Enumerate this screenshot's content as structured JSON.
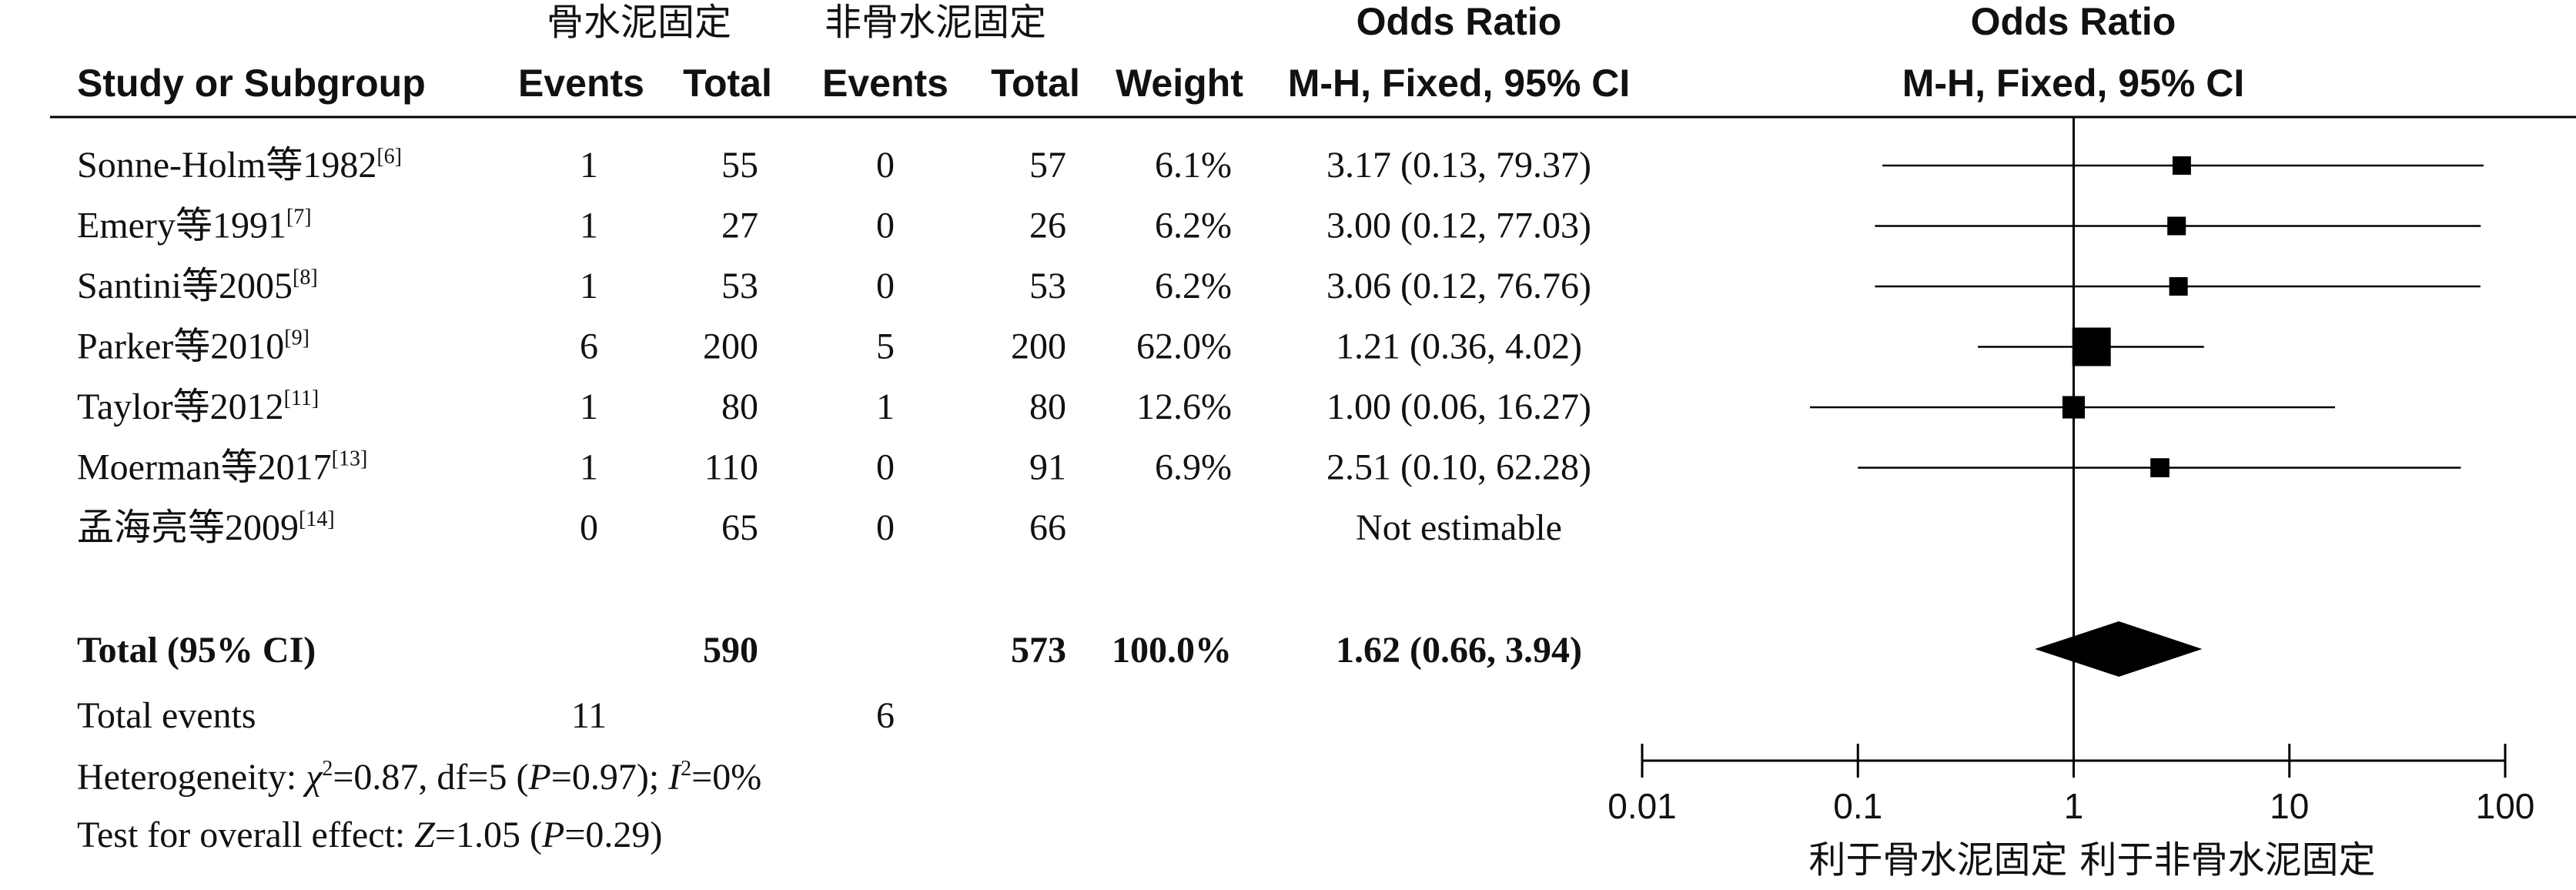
{
  "header": {
    "group1": "骨水泥固定",
    "group2": "非骨水泥固定",
    "or_title": "Odds Ratio",
    "or_method": "M-H, Fixed, 95% CI",
    "plot_title": "Odds Ratio",
    "plot_method": "M-H, Fixed, 95% CI",
    "study": "Study or Subgroup",
    "events1": "Events",
    "total1": "Total",
    "events2": "Events",
    "total2": "Total",
    "weight": "Weight"
  },
  "studies": [
    {
      "name": "Sonne-Holm等1982",
      "ref": "[6]",
      "e1": "1",
      "n1": "55",
      "e2": "0",
      "n2": "57",
      "weight": "6.1%",
      "or_text": "3.17 (0.13, 79.37)"
    },
    {
      "name": "Emery等1991",
      "ref": "[7]",
      "e1": "1",
      "n1": "27",
      "e2": "0",
      "n2": "26",
      "weight": "6.2%",
      "or_text": "3.00 (0.12, 77.03)"
    },
    {
      "name": "Santini等2005",
      "ref": "[8]",
      "e1": "1",
      "n1": "53",
      "e2": "0",
      "n2": "53",
      "weight": "6.2%",
      "or_text": "3.06 (0.12, 76.76)"
    },
    {
      "name": "Parker等2010",
      "ref": "[9]",
      "e1": "6",
      "n1": "200",
      "e2": "5",
      "n2": "200",
      "weight": "62.0%",
      "or_text": "1.21 (0.36, 4.02)"
    },
    {
      "name": "Taylor等2012",
      "ref": "[11]",
      "e1": "1",
      "n1": "80",
      "e2": "1",
      "n2": "80",
      "weight": "12.6%",
      "or_text": "1.00 (0.06, 16.27)"
    },
    {
      "name": "Moerman等2017",
      "ref": "[13]",
      "e1": "1",
      "n1": "110",
      "e2": "0",
      "n2": "91",
      "weight": "6.9%",
      "or_text": "2.51 (0.10, 62.28)"
    },
    {
      "name": "孟海亮等2009",
      "ref": "[14]",
      "e1": "0",
      "n1": "65",
      "e2": "0",
      "n2": "66",
      "weight": "",
      "or_text": "Not estimable"
    }
  ],
  "total": {
    "label": "Total (95% CI)",
    "n1": "590",
    "n2": "573",
    "weight": "100.0%",
    "or_text": "1.62 (0.66, 3.94)"
  },
  "total_events": {
    "label": "Total events",
    "e1": "11",
    "e2": "6"
  },
  "heterogeneity": {
    "prefix": "Heterogeneity: ",
    "chi": "χ",
    "chi_val": "=0.87, df=5 (",
    "p": "P",
    "p_val": "=0.97); ",
    "i": "I",
    "i_val": "=0%"
  },
  "overall": {
    "prefix": "Test for overall effect: ",
    "z": "Z",
    "z_val": "=1.05 (",
    "p": "P",
    "p_val": "=0.29)"
  },
  "chart_data": {
    "type": "forest",
    "scale": "log",
    "xlim": [
      0.01,
      100
    ],
    "ticks": [
      "0.01",
      "0.1",
      "1",
      "10",
      "100"
    ],
    "tick_values": [
      0.01,
      0.1,
      1,
      10,
      100
    ],
    "favours_left": "利于骨水泥固定",
    "favours_right": "利于非骨水泥固定",
    "points": [
      {
        "study": "Sonne-Holm等1982",
        "or": 3.17,
        "lo": 0.13,
        "hi": 79.37,
        "weight": 6.1
      },
      {
        "study": "Emery等1991",
        "or": 3.0,
        "lo": 0.12,
        "hi": 77.03,
        "weight": 6.2
      },
      {
        "study": "Santini等2005",
        "or": 3.06,
        "lo": 0.12,
        "hi": 76.76,
        "weight": 6.2
      },
      {
        "study": "Parker等2010",
        "or": 1.21,
        "lo": 0.36,
        "hi": 4.02,
        "weight": 62.0
      },
      {
        "study": "Taylor等2012",
        "or": 1.0,
        "lo": 0.06,
        "hi": 16.27,
        "weight": 12.6
      },
      {
        "study": "Moerman等2017",
        "or": 2.51,
        "lo": 0.1,
        "hi": 62.28,
        "weight": 6.9
      }
    ],
    "pooled": {
      "or": 1.62,
      "lo": 0.66,
      "hi": 3.94
    }
  }
}
